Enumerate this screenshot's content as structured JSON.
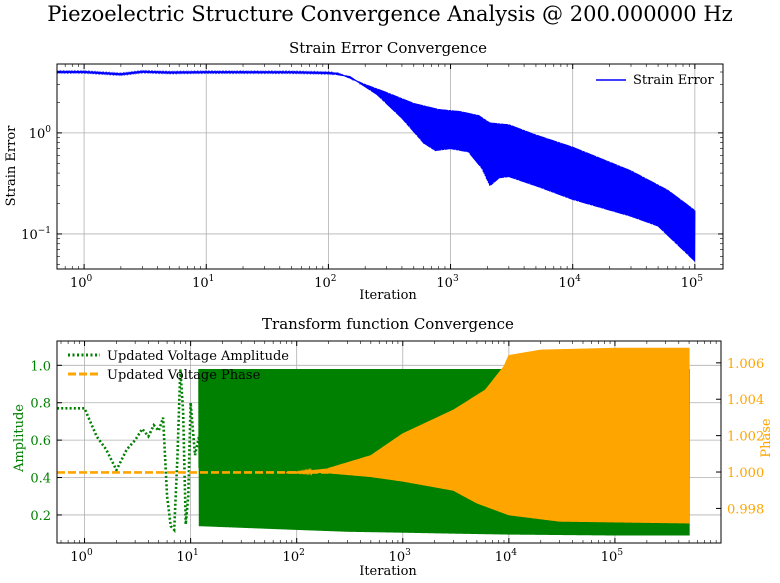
{
  "figure": {
    "suptitle": "Piezoelectric Structure Convergence Analysis @ 200.000000 Hz"
  },
  "chart_data": [
    {
      "type": "line",
      "title": "Strain Error Convergence",
      "xlabel": "Iteration",
      "ylabel": "Strain Error",
      "xscale": "log",
      "yscale": "log",
      "xlim": [
        0.6,
        170000
      ],
      "ylim": [
        0.045,
        4.8
      ],
      "x_ticks": [
        {
          "value": 1,
          "base": "10",
          "exp": "0"
        },
        {
          "value": 10,
          "base": "10",
          "exp": "1"
        },
        {
          "value": 100,
          "base": "10",
          "exp": "2"
        },
        {
          "value": 1000,
          "base": "10",
          "exp": "3"
        },
        {
          "value": 10000,
          "base": "10",
          "exp": "4"
        },
        {
          "value": 100000,
          "base": "10",
          "exp": "5"
        }
      ],
      "y_ticks": [
        {
          "value": 0.1,
          "base": "10",
          "exp": "−1"
        },
        {
          "value": 1,
          "base": "10",
          "exp": "0"
        }
      ],
      "grid": true,
      "legend": "top-right",
      "series": [
        {
          "name": "Strain Error",
          "color": "#0000ff",
          "render": "oscillating-band",
          "upper_envelope": [
            [
              0.6,
              4.0
            ],
            [
              1,
              4.0
            ],
            [
              2,
              3.85
            ],
            [
              3,
              4.1
            ],
            [
              5,
              4.0
            ],
            [
              10,
              4.02
            ],
            [
              50,
              4.0
            ],
            [
              120,
              3.9
            ],
            [
              200,
              3.0
            ],
            [
              300,
              2.5
            ],
            [
              500,
              1.95
            ],
            [
              800,
              1.7
            ],
            [
              1200,
              1.62
            ],
            [
              1700,
              1.48
            ],
            [
              2100,
              1.25
            ],
            [
              3000,
              1.2
            ],
            [
              5000,
              0.95
            ],
            [
              10000,
              0.72
            ],
            [
              30000,
              0.42
            ],
            [
              60000,
              0.27
            ],
            [
              100000,
              0.17
            ]
          ],
          "lower_envelope": [
            [
              0.6,
              4.0
            ],
            [
              1,
              4.0
            ],
            [
              2,
              3.75
            ],
            [
              3,
              3.95
            ],
            [
              5,
              3.9
            ],
            [
              10,
              3.95
            ],
            [
              50,
              3.95
            ],
            [
              100,
              3.9
            ],
            [
              150,
              3.6
            ],
            [
              250,
              2.4
            ],
            [
              400,
              1.4
            ],
            [
              600,
              0.8
            ],
            [
              750,
              0.67
            ],
            [
              1000,
              0.7
            ],
            [
              1400,
              0.65
            ],
            [
              1800,
              0.45
            ],
            [
              2100,
              0.3
            ],
            [
              2500,
              0.36
            ],
            [
              3000,
              0.37
            ],
            [
              5000,
              0.3
            ],
            [
              10000,
              0.22
            ],
            [
              30000,
              0.15
            ],
            [
              50000,
              0.12
            ],
            [
              100000,
              0.054
            ]
          ]
        }
      ]
    },
    {
      "type": "line",
      "title": "Transform function Convergence",
      "xlabel": "Iteration",
      "ylabel": "Amplitude",
      "ylabel_right": "Phase",
      "xscale": "log",
      "xlim": [
        0.55,
        1000000
      ],
      "ylim": [
        0.05,
        1.13
      ],
      "ylim_right": [
        0.9961,
        1.0072
      ],
      "x_ticks": [
        {
          "value": 1,
          "base": "10",
          "exp": "0"
        },
        {
          "value": 10,
          "base": "10",
          "exp": "1"
        },
        {
          "value": 100,
          "base": "10",
          "exp": "2"
        },
        {
          "value": 1000,
          "base": "10",
          "exp": "3"
        },
        {
          "value": 10000,
          "base": "10",
          "exp": "4"
        },
        {
          "value": 100000,
          "base": "10",
          "exp": "5"
        }
      ],
      "y_ticks": [
        "0.2",
        "0.4",
        "0.6",
        "0.8",
        "1.0"
      ],
      "y_ticks_right": [
        "0.998",
        "1.000",
        "1.002",
        "1.004",
        "1.006"
      ],
      "grid": true,
      "legend": "top-left",
      "series": [
        {
          "name": "Updated Voltage Amplitude",
          "axis": "left",
          "color": "#008000",
          "style": "dotted",
          "early_path": [
            [
              0.55,
              0.77
            ],
            [
              0.8,
              0.77
            ],
            [
              1,
              0.77
            ],
            [
              1.3,
              0.62
            ],
            [
              1.6,
              0.55
            ],
            [
              2,
              0.44
            ],
            [
              2.5,
              0.55
            ],
            [
              3,
              0.6
            ],
            [
              3.5,
              0.66
            ],
            [
              4,
              0.62
            ],
            [
              4.5,
              0.68
            ],
            [
              5,
              0.65
            ],
            [
              5.5,
              0.72
            ],
            [
              6,
              0.3
            ],
            [
              6.5,
              0.14
            ],
            [
              7,
              0.12
            ],
            [
              7.5,
              0.5
            ],
            [
              8,
              0.98
            ],
            [
              8.5,
              0.75
            ],
            [
              9,
              0.15
            ],
            [
              9.5,
              0.3
            ],
            [
              10,
              0.8
            ],
            [
              11,
              0.52
            ],
            [
              12,
              0.62
            ],
            [
              13,
              0.2
            ],
            [
              14,
              0.66
            ],
            [
              15,
              0.55
            ],
            [
              16,
              0.98
            ],
            [
              17,
              0.16
            ],
            [
              18,
              0.6
            ],
            [
              20,
              0.6
            ]
          ],
          "band_start": 12,
          "band_end": 500000,
          "upper": 0.98,
          "lower_envelope": [
            [
              12,
              0.14
            ],
            [
              100,
              0.12
            ],
            [
              300,
              0.11
            ],
            [
              1000,
              0.105
            ],
            [
              3000,
              0.1
            ],
            [
              10000,
              0.095
            ],
            [
              100000,
              0.09
            ],
            [
              500000,
              0.09
            ]
          ],
          "inner_low_envelope": [
            [
              12,
              0.45
            ],
            [
              100,
              0.42
            ],
            [
              300,
              0.4
            ],
            [
              1000,
              0.4
            ],
            [
              2000,
              0.38
            ],
            [
              5000,
              0.33
            ],
            [
              10000,
              0.25
            ],
            [
              30000,
              0.14
            ],
            [
              100000,
              0.1
            ],
            [
              500000,
              0.09
            ]
          ],
          "inner_high_envelope": [
            [
              12,
              0.8
            ],
            [
              100,
              0.88
            ],
            [
              300,
              0.9
            ],
            [
              1000,
              0.9
            ],
            [
              2000,
              0.9
            ],
            [
              5000,
              0.92
            ],
            [
              10000,
              0.95
            ],
            [
              30000,
              0.97
            ],
            [
              500000,
              0.98
            ]
          ]
        },
        {
          "name": "Updated Voltage Phase",
          "axis": "right",
          "color": "#ffa500",
          "style": "dashed",
          "flat_value": 0.99998,
          "upper_envelope": [
            [
              0.55,
              0.99998
            ],
            [
              100,
              1.0
            ],
            [
              200,
              1.0002
            ],
            [
              500,
              1.0009
            ],
            [
              1000,
              1.0021
            ],
            [
              3000,
              1.0034
            ],
            [
              6000,
              1.0045
            ],
            [
              9000,
              1.0058
            ],
            [
              10000,
              1.0064
            ],
            [
              20000,
              1.0067
            ],
            [
              100000,
              1.0068
            ],
            [
              500000,
              1.0068
            ]
          ],
          "lower_envelope": [
            [
              0.55,
              0.99998
            ],
            [
              200,
              0.99995
            ],
            [
              500,
              0.99975
            ],
            [
              1000,
              0.9995
            ],
            [
              3000,
              0.999
            ],
            [
              5000,
              0.9983
            ],
            [
              10000,
              0.99765
            ],
            [
              30000,
              0.9973
            ],
            [
              500000,
              0.9972
            ]
          ]
        }
      ]
    }
  ]
}
